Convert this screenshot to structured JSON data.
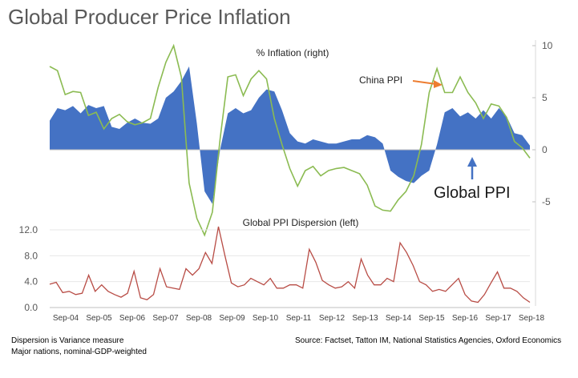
{
  "page": {
    "title": "Global Producer Price Inflation",
    "notes": [
      "Dispersion is Variance measure",
      "Major nations, nominal-GDP-weighted"
    ],
    "source": "Source: Factset, Tatton IM, National Statistics Agencies, Oxford Economics"
  },
  "colors": {
    "area": "#4472C4",
    "china_line": "#8BBB52",
    "dispersion_line": "#B84C45",
    "arrow_orange": "#ED7D31",
    "arrow_blue": "#4472C4"
  },
  "chart_data": [
    {
      "type": "area",
      "title": "% Inflation (right)",
      "y_axis_side": "right",
      "ylim": [
        -7.5,
        10
      ],
      "y_ticks": [
        10,
        5,
        0,
        -5
      ],
      "y_tick_labels": [
        "10",
        "5",
        "0",
        "-5"
      ],
      "x_range": [
        "Sep-03",
        "Feb-19"
      ],
      "x_step": "quarterly",
      "annotations": [
        {
          "text": "China PPI",
          "arrow_color": "orange",
          "points_to": "China PPI"
        },
        {
          "text": "Global PPI",
          "arrow_color": "blue",
          "points_to": "Global PPI"
        }
      ],
      "series": [
        {
          "name": "Global PPI",
          "style": "area",
          "values": [
            2.8,
            4.0,
            3.8,
            4.2,
            3.5,
            4.3,
            4.0,
            4.2,
            2.2,
            2.0,
            2.6,
            3.0,
            2.6,
            2.5,
            3.0,
            5.0,
            5.6,
            6.6,
            8.0,
            2.5,
            -4.0,
            -5.2,
            0.0,
            3.5,
            4.0,
            3.5,
            3.8,
            5.0,
            5.8,
            5.6,
            3.8,
            1.6,
            0.8,
            0.6,
            1.0,
            0.8,
            0.6,
            0.6,
            0.8,
            1.0,
            1.0,
            1.4,
            1.2,
            0.6,
            -2.0,
            -2.6,
            -3.0,
            -3.2,
            -2.5,
            -2.0,
            0.5,
            3.6,
            4.0,
            3.2,
            3.6,
            3.0,
            3.8,
            3.0,
            4.0,
            3.2,
            1.6,
            1.4,
            0.4
          ]
        },
        {
          "name": "China PPI",
          "style": "line",
          "values": [
            8.0,
            7.6,
            5.3,
            5.6,
            5.5,
            3.3,
            3.6,
            2.0,
            3.0,
            3.4,
            2.7,
            2.4,
            2.6,
            3.0,
            6.0,
            8.4,
            10.0,
            7.0,
            -3.2,
            -6.6,
            -8.2,
            -6.0,
            1.0,
            7.0,
            7.2,
            5.2,
            6.8,
            7.6,
            6.8,
            3.0,
            0.5,
            -1.8,
            -3.5,
            -2.0,
            -1.6,
            -2.5,
            -2.0,
            -1.8,
            -1.7,
            -2.0,
            -2.3,
            -3.4,
            -5.4,
            -5.8,
            -5.9,
            -4.8,
            -4.0,
            -2.5,
            0.5,
            5.5,
            7.8,
            5.5,
            5.5,
            7.0,
            5.5,
            4.5,
            3.0,
            4.4,
            4.2,
            3.1,
            0.8,
            0.2,
            -0.8
          ]
        }
      ]
    },
    {
      "type": "line",
      "title": "Global PPI Dispersion (left)",
      "y_axis_side": "left",
      "ylim": [
        0,
        12.0
      ],
      "y_ticks": [
        0,
        4,
        8,
        12
      ],
      "y_tick_labels": [
        "0.0",
        "4.0",
        "8.0",
        "12.0"
      ],
      "x_tick_labels": [
        "Sep-04",
        "Sep-05",
        "Sep-06",
        "Sep-07",
        "Sep-08",
        "Sep-09",
        "Sep-10",
        "Sep-11",
        "Sep-12",
        "Sep-13",
        "Sep-14",
        "Sep-15",
        "Sep-16",
        "Sep-17",
        "Sep-18"
      ],
      "x_range": [
        "Sep-03",
        "Feb-19"
      ],
      "x_step": "quarterly",
      "series": [
        {
          "name": "Global PPI Dispersion",
          "values": [
            3.6,
            3.9,
            2.3,
            2.5,
            2.0,
            2.2,
            5.0,
            2.5,
            3.5,
            2.5,
            2.0,
            1.6,
            2.2,
            5.6,
            1.5,
            1.2,
            2.0,
            6.0,
            3.2,
            3.0,
            2.8,
            6.0,
            5.0,
            6.0,
            8.5,
            6.8,
            12.5,
            8.0,
            3.8,
            3.2,
            3.5,
            4.5,
            4.0,
            3.5,
            4.5,
            3.0,
            3.0,
            3.5,
            3.5,
            3.0,
            9.0,
            7.0,
            4.2,
            3.5,
            3.0,
            3.2,
            4.0,
            3.0,
            7.5,
            5.0,
            3.5,
            3.5,
            4.5,
            4.0,
            10.0,
            8.5,
            6.5,
            4.0,
            3.5,
            2.5,
            2.8,
            2.5,
            3.5,
            4.5,
            2.0,
            1.0,
            0.8,
            2.0,
            3.8,
            5.5,
            3.0,
            3.0,
            2.5,
            1.5,
            0.8
          ]
        }
      ]
    }
  ]
}
